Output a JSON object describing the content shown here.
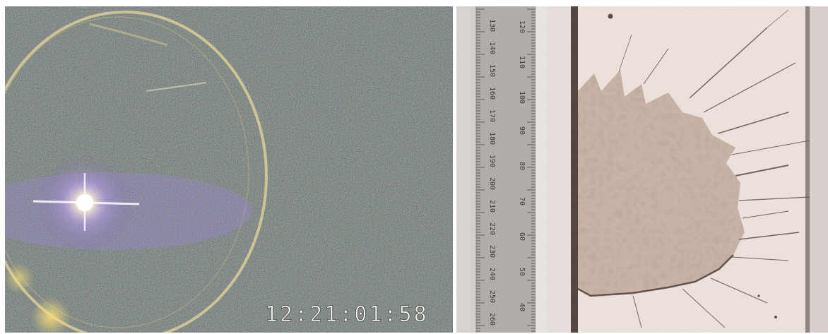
{
  "video_frame": {
    "timestamp": "12:21:01:58",
    "colors": {
      "base": "#3f5a3f",
      "flash": "#ffffff",
      "ring": "#e6d69a"
    }
  },
  "specimen_photo": {
    "colors": {
      "plate": "#f1e6e0",
      "stain": "#9c8478",
      "ruler": "#b3b0ad"
    },
    "ruler": {
      "scale_outer": [
        "130",
        "140",
        "150",
        "160",
        "170",
        "180",
        "190",
        "200",
        "210",
        "220",
        "230",
        "240",
        "250",
        "260"
      ],
      "scale_inner": [
        "120",
        "110",
        "100",
        "90",
        "80",
        "70",
        "60",
        "50",
        "40"
      ]
    }
  }
}
